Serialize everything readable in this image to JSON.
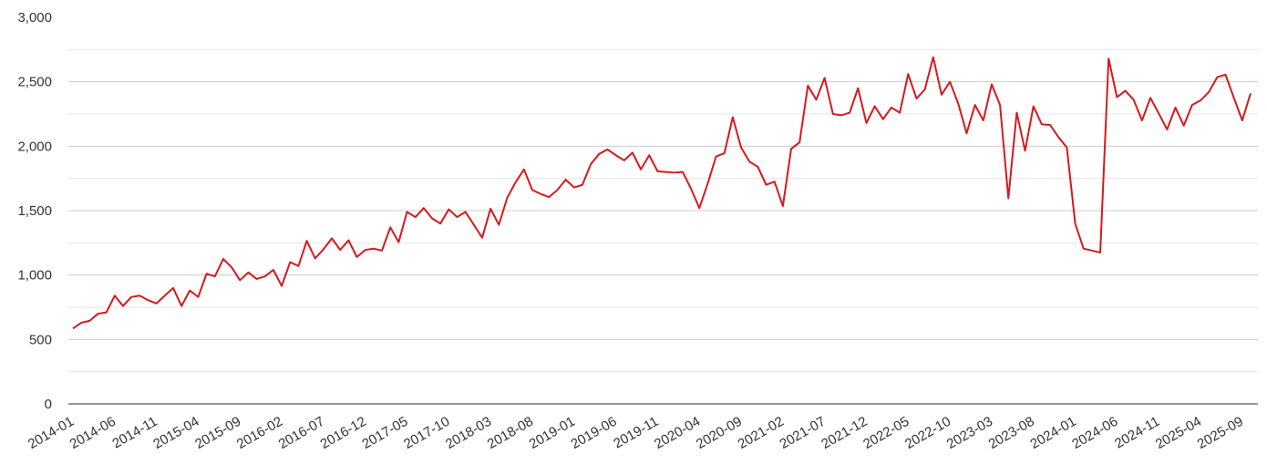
{
  "chart_data": {
    "type": "line",
    "title": "",
    "xlabel": "",
    "ylabel": "",
    "ylim": [
      0,
      3000
    ],
    "y_ticks": [
      {
        "value": 0,
        "label": "0"
      },
      {
        "value": 500,
        "label": "500"
      },
      {
        "value": 1000,
        "label": "1,000"
      },
      {
        "value": 1500,
        "label": "1,500"
      },
      {
        "value": 2000,
        "label": "2,000"
      },
      {
        "value": 2500,
        "label": "2,500"
      },
      {
        "value": 3000,
        "label": "3,000"
      }
    ],
    "x_ticks": [
      "2014-01",
      "2014-06",
      "2014-11",
      "2015-04",
      "2015-09",
      "2016-02",
      "2016-07",
      "2016-12",
      "2017-05",
      "2017-10",
      "2018-03",
      "2018-08",
      "2019-01",
      "2019-06",
      "2019-11",
      "2020-04",
      "2020-09",
      "2021-02",
      "2021-07",
      "2021-12",
      "2022-05",
      "2022-10",
      "2023-03",
      "2023-08",
      "2024-01",
      "2024-06",
      "2024-11",
      "2025-04",
      "2025-09"
    ],
    "grid": true,
    "legend": "none",
    "colors": {
      "line": "#d7191c",
      "grid": "#cccccc",
      "axis": "#333333"
    },
    "series": [
      {
        "values": [
          585,
          630,
          645,
          700,
          710,
          840,
          760,
          830,
          840,
          805,
          780,
          840,
          900,
          760,
          880,
          830,
          1010,
          990,
          1125,
          1060,
          960,
          1020,
          970,
          990,
          1040,
          915,
          1100,
          1070,
          1265,
          1130,
          1200,
          1285,
          1195,
          1270,
          1140,
          1195,
          1205,
          1190,
          1370,
          1255,
          1490,
          1450,
          1520,
          1440,
          1400,
          1510,
          1450,
          1490,
          1390,
          1290,
          1515,
          1390,
          1600,
          1720,
          1820,
          1660,
          1630,
          1605,
          1660,
          1740,
          1680,
          1700,
          1860,
          1940,
          1975,
          1930,
          1890,
          1950,
          1820,
          1930,
          1805,
          1800,
          1795,
          1800,
          1670,
          1520,
          1710,
          1920,
          1945,
          2225,
          1990,
          1880,
          1840,
          1700,
          1725,
          1535,
          1980,
          2030,
          2470,
          2360,
          2530,
          2250,
          2240,
          2260,
          2450,
          2180,
          2310,
          2210,
          2300,
          2260,
          2560,
          2370,
          2440,
          2690,
          2400,
          2500,
          2330,
          2100,
          2320,
          2200,
          2480,
          2320,
          1595,
          2260,
          1965,
          2310,
          2170,
          2165,
          2070,
          1990,
          1400,
          1205,
          1190,
          1175,
          2680,
          2380,
          2430,
          2360,
          2200,
          2375,
          2255,
          2130,
          2300,
          2160,
          2320,
          2355,
          2420,
          2535,
          2555,
          2375,
          2200,
          2410
        ]
      }
    ]
  }
}
